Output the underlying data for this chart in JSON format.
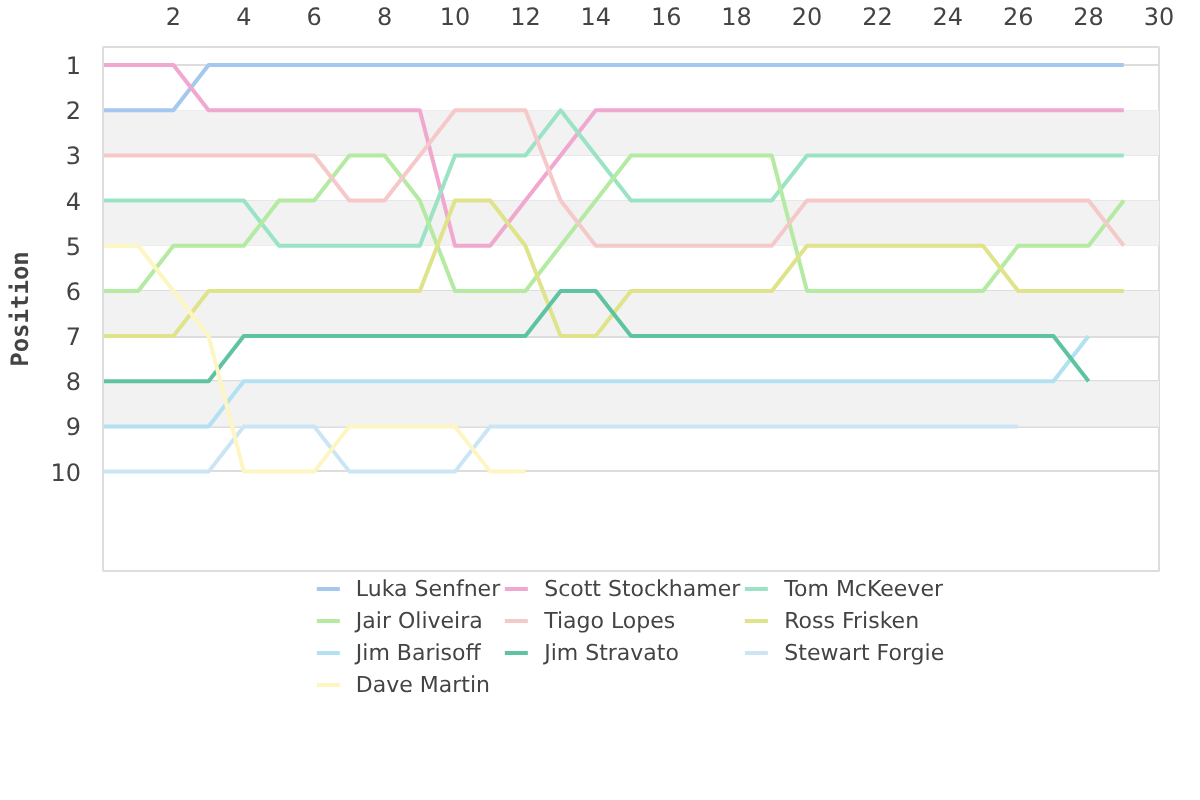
{
  "chart_data": {
    "type": "line",
    "ylabel": "Position",
    "xlim": [
      0,
      30
    ],
    "ylim": [
      12.2,
      0.6
    ],
    "xticks": [
      2,
      4,
      6,
      8,
      10,
      12,
      14,
      16,
      18,
      20,
      22,
      24,
      26,
      28,
      30
    ],
    "yticks": [
      1,
      2,
      3,
      4,
      5,
      6,
      7,
      8,
      9,
      10
    ],
    "grid": "y",
    "bands": [
      {
        "axis": "y",
        "from": 2,
        "to": 3,
        "color": "#f2f2f2"
      },
      {
        "axis": "y",
        "from": 4,
        "to": 5,
        "color": "#f2f2f2"
      },
      {
        "axis": "y",
        "from": 6,
        "to": 7,
        "color": "#f2f2f2"
      },
      {
        "axis": "y",
        "from": 8,
        "to": 9,
        "color": "#f2f2f2"
      }
    ],
    "legend": "bottom",
    "marker": "none",
    "line_style": "solid",
    "x": [
      0,
      1,
      2,
      3,
      4,
      5,
      6,
      7,
      8,
      9,
      10,
      11,
      12,
      13,
      14,
      15,
      16,
      17,
      18,
      19,
      20,
      21,
      22,
      23,
      24,
      25,
      26,
      27,
      28,
      29
    ],
    "series": [
      {
        "name": "Luka Senfner",
        "color": "#a5c8ef",
        "values": [
          2,
          2,
          2,
          1,
          1,
          1,
          1,
          1,
          1,
          1,
          1,
          1,
          1,
          1,
          1,
          1,
          1,
          1,
          1,
          1,
          1,
          1,
          1,
          1,
          1,
          1,
          1,
          1,
          1,
          1
        ]
      },
      {
        "name": "Scott Stockhamer",
        "color": "#f0a8cf",
        "values": [
          1,
          1,
          1,
          2,
          2,
          2,
          2,
          2,
          2,
          2,
          5,
          5,
          4,
          3,
          2,
          2,
          2,
          2,
          2,
          2,
          2,
          2,
          2,
          2,
          2,
          2,
          2,
          2,
          2,
          2
        ]
      },
      {
        "name": "Tom McKeever",
        "color": "#9be3c5",
        "values": [
          4,
          4,
          4,
          4,
          4,
          5,
          5,
          5,
          5,
          5,
          3,
          3,
          3,
          2,
          3,
          4,
          4,
          4,
          4,
          4,
          3,
          3,
          3,
          3,
          3,
          3,
          3,
          3,
          3,
          3
        ]
      },
      {
        "name": "Jair Oliveira",
        "color": "#b5eaa3",
        "values": [
          6,
          6,
          5,
          5,
          5,
          4,
          4,
          3,
          3,
          4,
          6,
          6,
          6,
          5,
          4,
          3,
          3,
          3,
          3,
          3,
          6,
          6,
          6,
          6,
          6,
          6,
          5,
          5,
          5,
          4
        ]
      },
      {
        "name": "Tiago Lopes",
        "color": "#f5c9c9",
        "values": [
          3,
          3,
          3,
          3,
          3,
          3,
          3,
          4,
          4,
          3,
          2,
          2,
          2,
          4,
          5,
          5,
          5,
          5,
          5,
          5,
          4,
          4,
          4,
          4,
          4,
          4,
          4,
          4,
          4,
          5
        ]
      },
      {
        "name": "Ross Frisken",
        "color": "#dfe38a",
        "values": [
          7,
          7,
          7,
          6,
          6,
          6,
          6,
          6,
          6,
          6,
          4,
          4,
          5,
          7,
          7,
          6,
          6,
          6,
          6,
          6,
          5,
          5,
          5,
          5,
          5,
          5,
          6,
          6,
          6,
          6
        ]
      },
      {
        "name": "Jim Barisoff",
        "color": "#b2e2f2",
        "values": [
          9,
          9,
          9,
          9,
          8,
          8,
          8,
          8,
          8,
          8,
          8,
          8,
          8,
          8,
          8,
          8,
          8,
          8,
          8,
          8,
          8,
          8,
          8,
          8,
          8,
          8,
          8,
          8,
          7,
          null
        ]
      },
      {
        "name": "Jim Stravato",
        "color": "#5ec4a0",
        "values": [
          8,
          8,
          8,
          8,
          7,
          7,
          7,
          7,
          7,
          7,
          7,
          7,
          7,
          6,
          6,
          7,
          7,
          7,
          7,
          7,
          7,
          7,
          7,
          7,
          7,
          7,
          7,
          7,
          8,
          null
        ]
      },
      {
        "name": "Stewart Forgie",
        "color": "#cce5f5",
        "values": [
          10,
          10,
          10,
          10,
          9,
          9,
          9,
          10,
          10,
          10,
          10,
          9,
          9,
          9,
          9,
          9,
          9,
          9,
          9,
          9,
          9,
          9,
          9,
          9,
          9,
          9,
          9,
          null,
          null,
          null
        ]
      },
      {
        "name": "Dave Martin",
        "color": "#fdf5c2",
        "values": [
          5,
          5,
          6,
          7,
          10,
          10,
          10,
          9,
          9,
          9,
          9,
          10,
          10,
          null,
          null,
          null,
          null,
          null,
          null,
          null,
          null,
          null,
          null,
          null,
          null,
          null,
          null,
          null,
          null,
          null
        ]
      }
    ]
  }
}
